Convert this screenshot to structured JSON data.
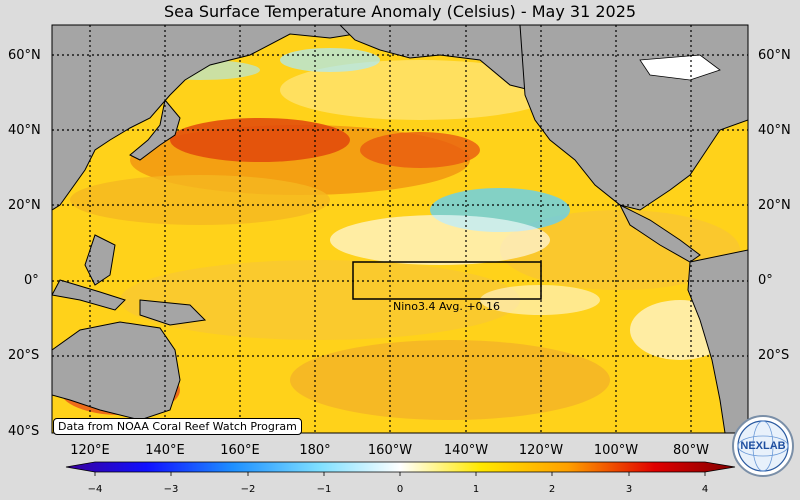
{
  "title": "Sea Surface Temperature Anomaly (Celsius) - May 31 2025",
  "lat_labels": [
    "60°N",
    "40°N",
    "20°N",
    "0°",
    "20°S",
    "40°S"
  ],
  "lon_labels": [
    "120°E",
    "140°E",
    "160°E",
    "180°",
    "160°W",
    "140°W",
    "120°W",
    "100°W",
    "80°W"
  ],
  "nino_box": {
    "label": "Nino3.4 Avg. +0.16"
  },
  "credit": "Data from NOAA Coral Reef Watch Program",
  "colorbar": {
    "ticks": [
      "−4",
      "−3",
      "−2",
      "−1",
      "0",
      "1",
      "2",
      "3",
      "4"
    ],
    "colors": [
      "#2b0087",
      "#0000ff",
      "#1e90ff",
      "#7fdcff",
      "#ffffff",
      "#ffe600",
      "#ff9900",
      "#e60000",
      "#8b0000"
    ]
  },
  "logo": {
    "text": "NEXLAB"
  },
  "colors": {
    "land": "#a5a5a5",
    "warm": "#f7b700",
    "hot": "#e8530f",
    "cool": "#4fd0ff",
    "neutral": "#ffffff"
  }
}
